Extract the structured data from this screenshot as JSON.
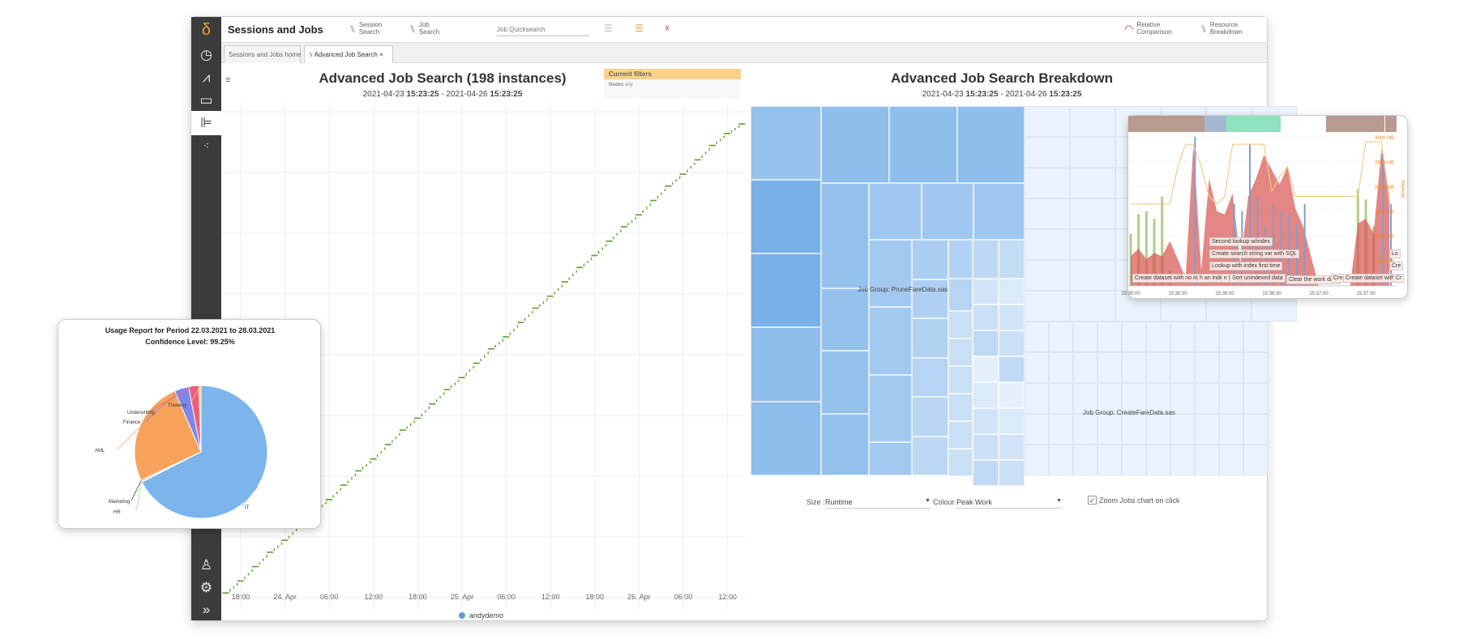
{
  "app": {
    "title": "Sessions and Jobs",
    "logo": "δ"
  },
  "sidebar": {
    "top_icons": [
      "dashboard-gauge-icon",
      "chart-icon",
      "server-icon",
      "hierarchy-icon",
      "cluster-icon"
    ],
    "bottom_icons": [
      "user-icon",
      "gear-icon",
      "expand-chevrons-icon"
    ],
    "active": "hierarchy-icon"
  },
  "toolbar": {
    "session_search": [
      "Session",
      "Search"
    ],
    "job_search": [
      "Job",
      "Search"
    ],
    "quicksearch_placeholder": "Job Quicksearch",
    "relative_comparison": [
      "Relative",
      "Comparison"
    ],
    "resource_breakdown": [
      "Resource",
      "Breakdown"
    ]
  },
  "tabs": [
    {
      "label": "Sessions and Jobs home"
    },
    {
      "label": "Advanced Job Search",
      "close": "×"
    }
  ],
  "left": {
    "title": "Advanced Job Search (198 instances)",
    "subtitle": {
      "from_date": "2021-04-23",
      "from_time": "15:23:25",
      "sep": " - ",
      "to_date": "2021-04-26",
      "to_time": "15:23:25"
    },
    "filters": {
      "header": "Current filters",
      "key": "Nodes",
      "value": "any"
    },
    "legend": "andydemo"
  },
  "chart_data": [
    {
      "type": "scatter",
      "title": "Advanced Job Search (198 instances)",
      "xlim": [
        "2021-04-23 15:23:25",
        "2021-04-26 15:23:25"
      ],
      "xticks": [
        "18:00",
        "24. Apr",
        "06:00",
        "12:00",
        "18:00",
        "25. Apr",
        "06:00",
        "12:00",
        "18:00",
        "26. Apr",
        "06:00",
        "12:00"
      ],
      "grid": true,
      "legend_placement": "bottom",
      "series": [
        {
          "name": "andydemo",
          "color": "#5aa02c",
          "points": [
            [
              "2021-04-23 16:00",
              2
            ],
            [
              "2021-04-23 18:00",
              7
            ],
            [
              "2021-04-23 20:00",
              13
            ],
            [
              "2021-04-23 22:00",
              19
            ],
            [
              "2021-04-24 00:00",
              24
            ],
            [
              "2021-04-24 02:00",
              30
            ],
            [
              "2021-04-24 04:00",
              36
            ],
            [
              "2021-04-24 06:00",
              41
            ],
            [
              "2021-04-24 08:00",
              47
            ],
            [
              "2021-04-24 10:00",
              53
            ],
            [
              "2021-04-24 12:00",
              58
            ],
            [
              "2021-04-24 14:00",
              64
            ],
            [
              "2021-04-24 16:00",
              70
            ],
            [
              "2021-04-24 18:00",
              75
            ],
            [
              "2021-04-24 20:00",
              81
            ],
            [
              "2021-04-24 22:00",
              87
            ],
            [
              "2021-04-25 00:00",
              92
            ],
            [
              "2021-04-25 02:00",
              98
            ],
            [
              "2021-04-25 04:00",
              104
            ],
            [
              "2021-04-25 06:00",
              109
            ],
            [
              "2021-04-25 08:00",
              115
            ],
            [
              "2021-04-25 10:00",
              121
            ],
            [
              "2021-04-25 12:00",
              126
            ],
            [
              "2021-04-25 14:00",
              132
            ],
            [
              "2021-04-25 16:00",
              138
            ],
            [
              "2021-04-25 18:00",
              143
            ],
            [
              "2021-04-25 20:00",
              149
            ],
            [
              "2021-04-25 22:00",
              155
            ],
            [
              "2021-04-26 00:00",
              160
            ],
            [
              "2021-04-26 02:00",
              166
            ],
            [
              "2021-04-26 04:00",
              172
            ],
            [
              "2021-04-26 06:00",
              177
            ],
            [
              "2021-04-26 08:00",
              183
            ],
            [
              "2021-04-26 10:00",
              189
            ],
            [
              "2021-04-26 12:00",
              194
            ],
            [
              "2021-04-26 14:00",
              198
            ]
          ]
        }
      ],
      "legend_color": "#5b9bd5"
    },
    {
      "type": "pie",
      "title": "Usage Report for Period 22.03.2021 to 28.03.2021",
      "subtitle": "Confidence Level: 99.25%",
      "slices": [
        {
          "name": "IT",
          "value": 67.5,
          "color": "#7cb5ec"
        },
        {
          "name": "HR",
          "value": 0.2,
          "color": "#90ed7d"
        },
        {
          "name": "Marketing",
          "value": 0.3,
          "color": "#434348"
        },
        {
          "name": "AML",
          "value": 25.5,
          "color": "#f7a35c"
        },
        {
          "name": "Finance",
          "value": 3.5,
          "color": "#8085e9"
        },
        {
          "name": "Underwriting",
          "value": 2.5,
          "color": "#f15c80"
        },
        {
          "name": "Treasury",
          "value": 0.5,
          "color": "#e4d354"
        }
      ]
    },
    {
      "type": "area",
      "x_start": "15:35:00",
      "x_step_seconds": 5,
      "xticks": [
        "15:35:00",
        "15:35:30",
        "15:36:00",
        "15:36:30",
        "15:37:00",
        "15:37:30"
      ],
      "right_axis": {
        "label": "Memory",
        "ticks": [
          "3000 MB",
          "2500 MB",
          "2000 MB",
          "1500 MB",
          "1000 MB",
          "500 MB"
        ],
        "range": [
          0,
          3000
        ]
      },
      "series": [
        {
          "color": "#d9534f",
          "values": [
            20,
            25,
            18,
            22,
            20,
            30,
            18,
            5,
            95,
            10,
            72,
            50,
            48,
            62,
            15,
            60,
            72,
            88,
            78,
            68,
            80,
            52,
            40,
            20,
            0,
            0,
            0,
            0,
            0,
            42,
            45,
            35,
            92,
            62
          ]
        },
        {
          "color": "#9cc26a",
          "values": [
            35,
            48,
            50,
            45,
            60,
            10,
            0,
            0,
            0,
            0,
            0,
            0,
            0,
            0,
            0,
            0,
            0,
            0,
            0,
            0,
            0,
            0,
            0,
            0,
            0,
            0,
            0,
            0,
            0,
            65,
            58,
            40,
            0,
            0
          ]
        },
        {
          "color": "#7f9fd0",
          "values": [
            0,
            0,
            0,
            0,
            0,
            0,
            0,
            0,
            100,
            0,
            0,
            0,
            0,
            55,
            50,
            95,
            60,
            40,
            55,
            50,
            48,
            42,
            55,
            0,
            0,
            0,
            0,
            0,
            0,
            0,
            0,
            0,
            88,
            55
          ]
        },
        {
          "name": "Memory",
          "color": "#f5c98a",
          "values": [
            1650,
            1650,
            1650,
            1650,
            1650,
            1650,
            2400,
            2850,
            2850,
            2400,
            1800,
            1650,
            1800,
            2850,
            2850,
            2850,
            2850,
            2850,
            1900,
            2200,
            2400,
            1800,
            1800,
            1800,
            1800,
            1800,
            1800,
            1800,
            1800,
            1800,
            2900,
            2900,
            2900,
            1700
          ]
        }
      ],
      "band_colors": [
        "#b89a90",
        "#a3b8d3",
        "#8fe3c0"
      ],
      "step_labels": [
        "Second lookup w/index",
        "Create search string var with SQL",
        "Lookup with index first time",
        "Create dataset with no index",
        "h an index",
        "e Li",
        "Sort unindexed data",
        "Clear the work data",
        "Creat",
        "Create dataset with",
        "Cr",
        "Lo",
        "Cre"
      ]
    }
  ],
  "right": {
    "title": "Advanced Job Search Breakdown",
    "subtitle": {
      "from_date": "2021-04-23",
      "from_time": "15:23:25",
      "sep": " - ",
      "to_date": "2021-04-26",
      "to_time": "15:23:25"
    },
    "treemap": {
      "groups": [
        "Job Group: PruneFareData.sas",
        "Job Group: CreateFareData.sas"
      ],
      "color_scale": [
        "#eaf3fc",
        "#78b0e8"
      ]
    },
    "size_label": "Size :",
    "size_value": "Runtime",
    "colour_label": "Colour :",
    "colour_value": "Peak Work",
    "zoom_checkbox": {
      "label": "Zoom Jobs chart on click",
      "checked": true
    }
  }
}
